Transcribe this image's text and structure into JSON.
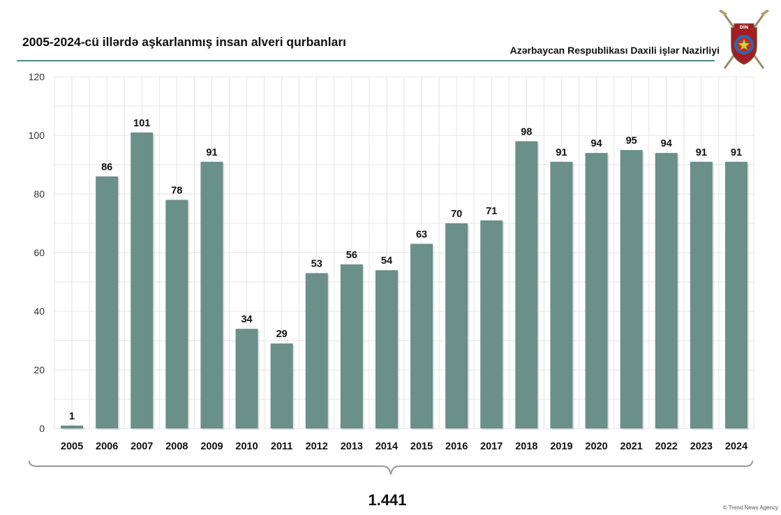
{
  "header": {
    "title": "2005-2024-cü illərdə aşkarlanmış insan alveri qurbanları",
    "source": "Azərbaycan Respublikası Daxili işlər Nazirliyi",
    "emblem_text": "DİN"
  },
  "summary": {
    "total": "1.441"
  },
  "footer": {
    "credit": "© Trend News Agency"
  },
  "colors": {
    "bar": "#6a9088",
    "rule": "#4f8a80",
    "grid": "#e4e4e4"
  },
  "icons": {
    "emblem": "ministry-emblem-icon"
  },
  "chart_data": {
    "type": "bar",
    "title": "2005-2024-cü illərdə aşkarlanmış insan alveri qurbanları",
    "xlabel": "",
    "ylabel": "",
    "categories": [
      "2005",
      "2006",
      "2007",
      "2008",
      "2009",
      "2010",
      "2011",
      "2012",
      "2013",
      "2014",
      "2015",
      "2016",
      "2017",
      "2018",
      "2019",
      "2020",
      "2021",
      "2022",
      "2023",
      "2024"
    ],
    "values": [
      1,
      86,
      101,
      78,
      91,
      34,
      29,
      53,
      56,
      54,
      63,
      70,
      71,
      98,
      91,
      94,
      95,
      94,
      91,
      91
    ],
    "ylim": [
      0,
      120
    ],
    "yticks": [
      0,
      20,
      40,
      60,
      80,
      100,
      120
    ],
    "grid": true,
    "data_labels": true,
    "legend": "none"
  }
}
